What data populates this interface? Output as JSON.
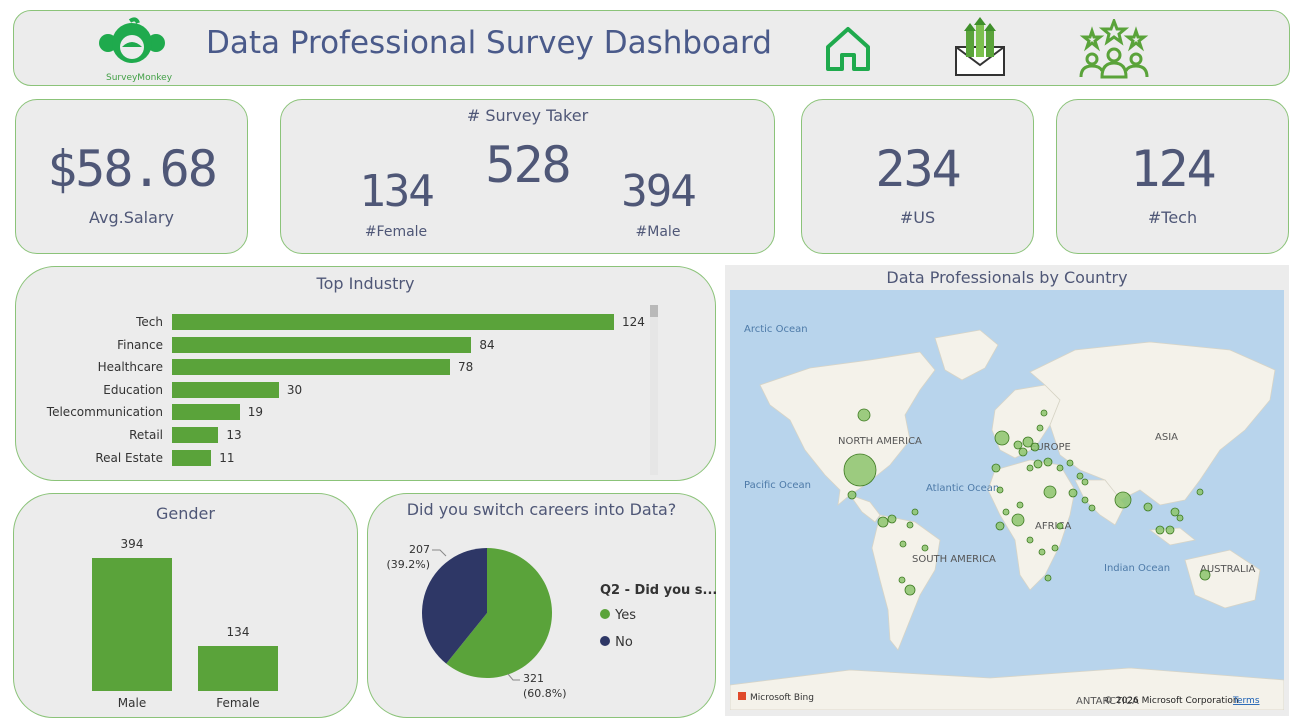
{
  "header": {
    "title": "Data Professional Survey Dashboard",
    "logo_text": "SurveyMonkey",
    "icons": [
      "surveymonkey-logo-icon",
      "home-icon",
      "salary-envelope-icon",
      "rating-people-icon"
    ]
  },
  "kpis": {
    "avg_salary": {
      "value": "$58.68",
      "label": "Avg.Salary"
    },
    "survey_taker": {
      "title": "# Survey Taker",
      "total": "528",
      "female": "134",
      "female_label": "#Female",
      "male": "394",
      "male_label": "#Male"
    },
    "us": {
      "value": "234",
      "label": "#US"
    },
    "tech": {
      "value": "124",
      "label": "#Tech"
    }
  },
  "map": {
    "title": "Data Professionals by Country",
    "labels": {
      "arctic": "Arctic Ocean",
      "north_america": "NORTH AMERICA",
      "europe": "EUROPE",
      "asia": "ASIA",
      "pacific": "Pacific Ocean",
      "atlantic": "Atlantic Ocean",
      "africa": "AFRICA",
      "south_america": "SOUTH AMERICA",
      "indian": "Indian Ocean",
      "australia": "AUSTRALIA",
      "antarctica": "ANTARCTICA"
    },
    "attribution": "Microsoft Bing",
    "copyright": "© 2026 Microsoft Corporation",
    "terms": "Terms"
  },
  "colors": {
    "accent_green": "#5aa33a",
    "navy": "#2e3766",
    "card_bg": "#ececec",
    "border": "#8bc379"
  },
  "chart_data": [
    {
      "type": "bar",
      "orientation": "horizontal",
      "title": "Top Industry",
      "categories": [
        "Tech",
        "Finance",
        "Healthcare",
        "Education",
        "Telecommunication",
        "Retail",
        "Real Estate"
      ],
      "values": [
        124,
        84,
        78,
        30,
        19,
        13,
        11
      ]
    },
    {
      "type": "bar",
      "title": "Gender",
      "categories": [
        "Male",
        "Female"
      ],
      "values": [
        394,
        134
      ]
    },
    {
      "type": "pie",
      "title": "Did you switch careers into Data?",
      "legend_title": "Q2 - Did you s...",
      "legend_placement": "right",
      "slices": [
        {
          "label": "Yes",
          "value": 321,
          "percent": "(60.8%)",
          "color": "#5aa33a"
        },
        {
          "label": "No",
          "value": 207,
          "percent": "(39.2%)",
          "color": "#2e3766"
        }
      ]
    }
  ]
}
